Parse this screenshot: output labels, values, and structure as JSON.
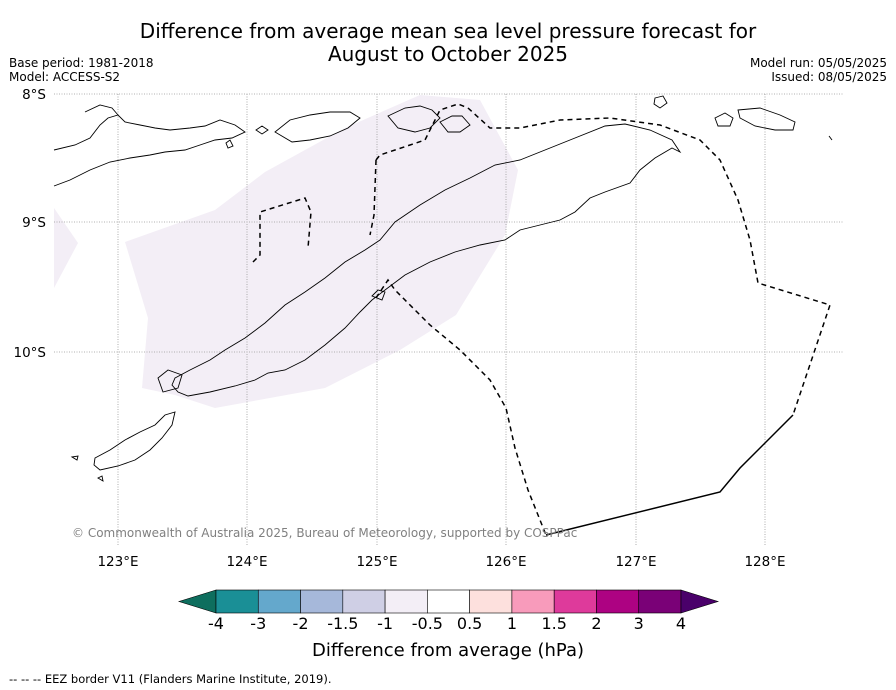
{
  "title_lines": [
    "Difference from average mean sea level pressure forecast for",
    "August to October 2025"
  ],
  "meta_left": [
    "Base period: 1981-2018",
    "Model: ACCESS-S2"
  ],
  "meta_right": [
    "Model run: 05/05/2025",
    "Issued: 08/05/2025"
  ],
  "map": {
    "lat_labels": [
      "8°S",
      "9°S",
      "10°S"
    ],
    "lon_labels": [
      "123°E",
      "124°E",
      "125°E",
      "126°E",
      "127°E",
      "128°E"
    ],
    "region_fill_color": "#f3eef6",
    "region_category": "-1 to -0.5",
    "coastline_color": "#000000",
    "eez_line_style": "dashed"
  },
  "copyright": "© Commonwealth of Australia 2025, Bureau of Meteorology, supported by COSPPac",
  "colorbar": {
    "tick_labels": [
      "-4",
      "-3",
      "-2",
      "-1.5",
      "-1",
      "-0.5",
      "0.5",
      "1",
      "1.5",
      "2",
      "3",
      "4"
    ],
    "segment_colors": [
      "#0e6e5e",
      "#1a8f96",
      "#64a8cc",
      "#a6b8da",
      "#cfcfe5",
      "#f3eef6",
      "#ffffff",
      "#fde0dd",
      "#f89bbb",
      "#de3a9b",
      "#ad0282",
      "#7a0177",
      "#4a006a"
    ],
    "label": "Difference from average (hPa)"
  },
  "footnote": "-- -- -- EEZ border V11 (Flanders Marine Institute, 2019)."
}
